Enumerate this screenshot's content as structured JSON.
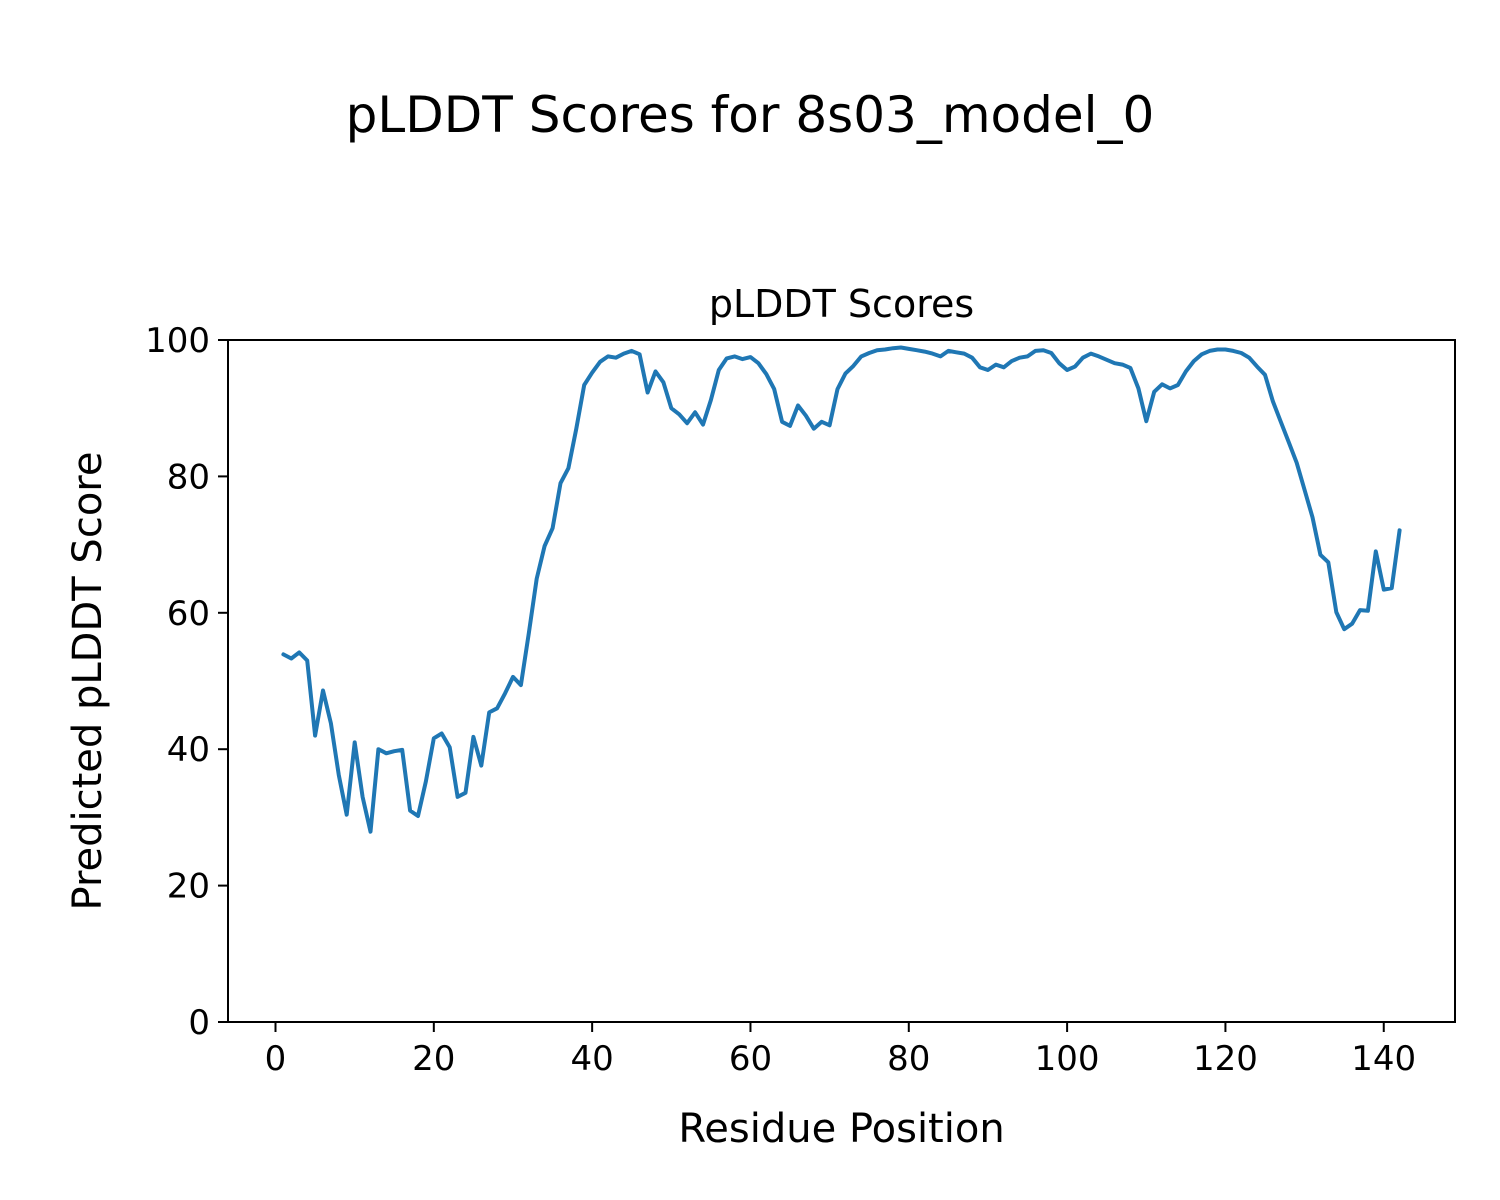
{
  "figure": {
    "suptitle": "pLDDT Scores for 8s03_model_0"
  },
  "chart_data": {
    "type": "line",
    "title": "pLDDT Scores",
    "xlabel": "Residue Position",
    "ylabel": "Predicted pLDDT Score",
    "xlim": [
      -6,
      149
    ],
    "ylim": [
      0,
      100
    ],
    "xticks": [
      0,
      20,
      40,
      60,
      80,
      100,
      120,
      140
    ],
    "yticks": [
      0,
      20,
      40,
      60,
      80,
      100
    ],
    "grid": false,
    "legend_position": "none",
    "line_color": "#1f77b4",
    "x": [
      1,
      2,
      3,
      4,
      5,
      6,
      7,
      8,
      9,
      10,
      11,
      12,
      13,
      14,
      15,
      16,
      17,
      18,
      19,
      20,
      21,
      22,
      23,
      24,
      25,
      26,
      27,
      28,
      29,
      30,
      31,
      32,
      33,
      34,
      35,
      36,
      37,
      38,
      39,
      40,
      41,
      42,
      43,
      44,
      45,
      46,
      47,
      48,
      49,
      50,
      51,
      52,
      53,
      54,
      55,
      56,
      57,
      58,
      59,
      60,
      61,
      62,
      63,
      64,
      65,
      66,
      67,
      68,
      69,
      70,
      71,
      72,
      73,
      74,
      75,
      76,
      77,
      78,
      79,
      80,
      81,
      82,
      83,
      84,
      85,
      86,
      87,
      88,
      89,
      90,
      91,
      92,
      93,
      94,
      95,
      96,
      97,
      98,
      99,
      100,
      101,
      102,
      103,
      104,
      105,
      106,
      107,
      108,
      109,
      110,
      111,
      112,
      113,
      114,
      115,
      116,
      117,
      118,
      119,
      120,
      121,
      122,
      123,
      124,
      125,
      126,
      127,
      128,
      129,
      130,
      131,
      132,
      133,
      134,
      135,
      136,
      137,
      138,
      139,
      140,
      141,
      142
    ],
    "series": [
      {
        "name": "pLDDT",
        "values": [
          53.9,
          53.3,
          54.2,
          53.0,
          42.0,
          48.6,
          43.8,
          36.2,
          30.4,
          41.0,
          33.0,
          27.9,
          40.0,
          39.4,
          39.7,
          39.9,
          31.0,
          30.2,
          35.3,
          41.6,
          42.3,
          40.3,
          33.0,
          33.6,
          41.8,
          37.6,
          45.4,
          46.0,
          48.2,
          50.6,
          49.4,
          57.0,
          65.0,
          69.8,
          72.4,
          79.0,
          81.2,
          87.0,
          93.4,
          95.2,
          96.8,
          97.6,
          97.4,
          98.0,
          98.4,
          97.9,
          92.3,
          95.4,
          93.8,
          90.0,
          89.1,
          87.8,
          89.4,
          87.6,
          91.2,
          95.6,
          97.3,
          97.6,
          97.2,
          97.5,
          96.6,
          95.0,
          92.8,
          88.0,
          87.4,
          90.4,
          88.9,
          87.0,
          88.0,
          87.5,
          92.8,
          95.1,
          96.2,
          97.6,
          98.1,
          98.5,
          98.6,
          98.8,
          98.9,
          98.7,
          98.5,
          98.3,
          98.0,
          97.6,
          98.4,
          98.2,
          98.0,
          97.4,
          96.0,
          95.6,
          96.4,
          96.0,
          96.9,
          97.4,
          97.6,
          98.4,
          98.5,
          98.1,
          96.6,
          95.6,
          96.1,
          97.4,
          98.0,
          97.6,
          97.1,
          96.6,
          96.4,
          95.9,
          92.9,
          88.1,
          92.4,
          93.5,
          92.9,
          93.4,
          95.4,
          96.9,
          97.9,
          98.4,
          98.6,
          98.6,
          98.4,
          98.1,
          97.4,
          96.1,
          94.9,
          91.0,
          88.0,
          85.0,
          82.0,
          78.0,
          74.0,
          68.5,
          67.4,
          60.1,
          57.6,
          58.4,
          60.4,
          60.3,
          69.0,
          63.4,
          63.6,
          72.1
        ]
      }
    ]
  }
}
